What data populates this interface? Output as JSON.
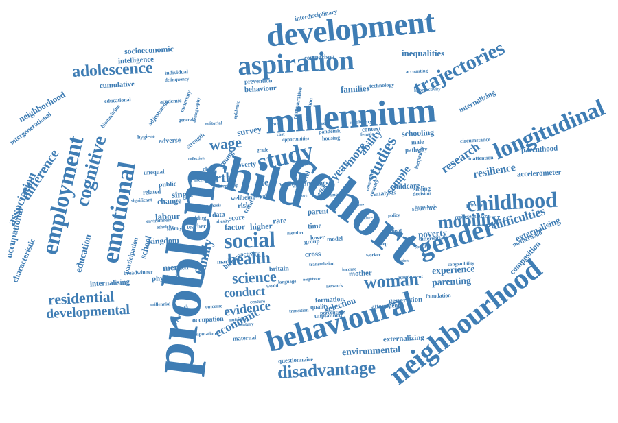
{
  "colors": {
    "word": "#3f7db4",
    "background": "#ffffff"
  },
  "cloud": {
    "words": [
      "problem",
      "cohort",
      "millennium",
      "child",
      "development",
      "behavioural",
      "neighbourhood",
      "longitudinal",
      "aspiration",
      "gender",
      "emotional",
      "study",
      "employment",
      "childhood",
      "trajectories",
      "social",
      "cognitive",
      "studies",
      "disadvantage",
      "adolescence",
      "mobility",
      "woman",
      "health",
      "residential",
      "science",
      "wage",
      "birth",
      "developmental",
      "difficulties",
      "family",
      "research",
      "evidence",
      "conduct",
      "economic",
      "difference",
      "association",
      "occupational",
      "inequalities",
      "resilience",
      "environmental",
      "experience",
      "parenting",
      "selection",
      "mental",
      "education",
      "survey",
      "labour",
      "life",
      "risk",
      "score",
      "poverty",
      "kingdom",
      "characteristic",
      "neighborhood",
      "intergenerational",
      "socioeconomic",
      "intelligence",
      "cumulative",
      "externalising",
      "externalizing",
      "composition",
      "accelerometer",
      "parenthood",
      "internalizing",
      "schooling",
      "mother",
      "generation",
      "attainment",
      "formation",
      "questionnaire",
      "motherhood",
      "internalising",
      "physical",
      "single",
      "change",
      "school",
      "participation",
      "interdisciplinary",
      "families",
      "behaviour",
      "prevention",
      "comparison",
      "technology",
      "year",
      "more",
      "ability",
      "childcare",
      "sample",
      "structure",
      "poverty",
      "data",
      "young",
      "class",
      "public",
      "related",
      "unequal",
      "maternal",
      "occupation",
      "educational",
      "biomedicine",
      "adjustment",
      "academic",
      "individual",
      "delinquency",
      "accounting",
      "hyperactivity",
      "comparative",
      "regulation",
      "pandemic",
      "housing",
      "context",
      "female",
      "male",
      "pathway",
      "analysis",
      "sibling",
      "decision",
      "adverse",
      "strength",
      "finding",
      "work",
      "area",
      "level",
      "rate",
      "effect",
      "parent",
      "cross",
      "britain",
      "making",
      "teacher",
      "higher",
      "time",
      "factor",
      "group",
      "lower",
      "model",
      "history",
      "market",
      "activity",
      "quality",
      "transition",
      "unplanned",
      "percentage",
      "foundation",
      "compatibility",
      "representative",
      "grandparent",
      "millennial",
      "opportunity",
      "imputation",
      "breadwinner",
      "inattention",
      "circumstance",
      "inequality",
      "hypothesis",
      "primary",
      "wellbeing",
      "trend",
      "policy",
      "gradient",
      "differential",
      "significant",
      "environment",
      "ethnicity",
      "maternity",
      "hygiene",
      "general",
      "editorial",
      "epidemic",
      "demography",
      "friendship",
      "collection",
      "nutrition",
      "outcome",
      "centure",
      "century",
      "opportunities",
      "transmission",
      "commons",
      "country",
      "verbal",
      "fertility",
      "worker",
      "income",
      "mechanism",
      "emphasis",
      "obesity",
      "supply",
      "move",
      "impact",
      "cost",
      "grade",
      "measure",
      "feature",
      "control",
      "stress",
      "vocabulary",
      "region",
      "sleep",
      "social",
      "wealth",
      "language",
      "network",
      "neighbour",
      "member",
      "weight",
      "better",
      "paper",
      "stage"
    ]
  }
}
